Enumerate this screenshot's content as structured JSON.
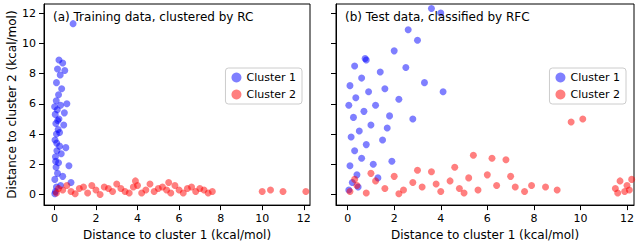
{
  "chart_data": [
    {
      "type": "scatter",
      "title": "(a) Training data, clustered by RC",
      "x_label": "Distance to cluster 1 (kcal/mol)",
      "y_label": "Distance to cluster 2 (kcal/mol)",
      "xlim": [
        -0.5,
        12.3
      ],
      "ylim": [
        -0.7,
        12.6
      ],
      "xticks": [
        0,
        2,
        4,
        6,
        8,
        10,
        12
      ],
      "yticks": [
        0,
        2,
        4,
        6,
        8,
        10,
        12
      ],
      "grid": false,
      "legend": "upper right",
      "series": [
        {
          "name": "Cluster 1",
          "color": "#0000ff",
          "marker": "circle",
          "values": [
            [
              0.05,
              0.2
            ],
            [
              0.1,
              0.5
            ],
            [
              0.02,
              1.0
            ],
            [
              0.15,
              1.4
            ],
            [
              0.08,
              1.8
            ],
            [
              0.2,
              2.1
            ],
            [
              0.05,
              2.5
            ],
            [
              0.12,
              2.9
            ],
            [
              0.25,
              3.2
            ],
            [
              0.03,
              3.6
            ],
            [
              0.1,
              4.0
            ],
            [
              0.18,
              4.3
            ],
            [
              0.07,
              4.7
            ],
            [
              0.22,
              5.0
            ],
            [
              0.04,
              5.3
            ],
            [
              0.14,
              5.6
            ],
            [
              0.3,
              5.9
            ],
            [
              0.09,
              6.2
            ],
            [
              0.2,
              6.6
            ],
            [
              0.35,
              7.0
            ],
            [
              0.1,
              7.4
            ],
            [
              0.28,
              7.9
            ],
            [
              0.15,
              8.3
            ],
            [
              0.4,
              8.7
            ],
            [
              0.22,
              8.9
            ],
            [
              0.5,
              8.2
            ],
            [
              0.6,
              6.0
            ],
            [
              0.45,
              4.6
            ],
            [
              0.55,
              3.1
            ],
            [
              0.7,
              1.9
            ],
            [
              0.4,
              1.2
            ],
            [
              0.3,
              0.6
            ],
            [
              0.8,
              0.8
            ],
            [
              0.02,
              0.05
            ],
            [
              0.06,
              2.2
            ],
            [
              0.11,
              3.4
            ],
            [
              0.16,
              4.9
            ],
            [
              0.01,
              5.8
            ],
            [
              0.25,
              4.1
            ],
            [
              0.9,
              11.3
            ],
            [
              0.33,
              2.7
            ],
            [
              0.48,
              5.4
            ]
          ]
        },
        {
          "name": "Cluster 2",
          "color": "#ff0000",
          "marker": "circle",
          "values": [
            [
              0.1,
              0.1
            ],
            [
              0.4,
              0.3
            ],
            [
              0.8,
              0.2
            ],
            [
              1.2,
              0.4
            ],
            [
              1.6,
              0.1
            ],
            [
              2.0,
              0.3
            ],
            [
              2.4,
              0.5
            ],
            [
              2.8,
              0.2
            ],
            [
              3.2,
              0.4
            ],
            [
              3.6,
              0.1
            ],
            [
              4.0,
              0.6
            ],
            [
              4.4,
              0.3
            ],
            [
              4.8,
              0.2
            ],
            [
              5.2,
              0.5
            ],
            [
              5.6,
              0.1
            ],
            [
              6.0,
              0.3
            ],
            [
              6.4,
              0.4
            ],
            [
              6.8,
              0.2
            ],
            [
              7.2,
              0.3
            ],
            [
              7.6,
              0.2
            ],
            [
              0.6,
              0.6
            ],
            [
              1.0,
              0.05
            ],
            [
              1.4,
              0.5
            ],
            [
              1.8,
              0.6
            ],
            [
              2.2,
              0.0
            ],
            [
              2.6,
              0.4
            ],
            [
              3.0,
              0.7
            ],
            [
              3.4,
              0.2
            ],
            [
              3.8,
              0.5
            ],
            [
              4.2,
              0.1
            ],
            [
              4.6,
              0.7
            ],
            [
              5.0,
              0.4
            ],
            [
              5.4,
              0.3
            ],
            [
              5.8,
              0.6
            ],
            [
              6.2,
              0.1
            ],
            [
              6.6,
              0.5
            ],
            [
              7.0,
              0.4
            ],
            [
              7.4,
              0.1
            ],
            [
              0.2,
              0.4
            ],
            [
              10.0,
              0.2
            ],
            [
              10.4,
              0.3
            ],
            [
              11.0,
              0.2
            ],
            [
              12.1,
              0.2
            ],
            [
              3.9,
              0.9
            ],
            [
              5.5,
              0.8
            ]
          ]
        }
      ]
    },
    {
      "type": "scatter",
      "title": "(b) Test data, classified by RFC",
      "x_label": "Distance to cluster 1 (kcal/mol)",
      "xlim": [
        -0.5,
        12.3
      ],
      "ylim": [
        -0.7,
        12.6
      ],
      "xticks": [
        0,
        2,
        4,
        6,
        8,
        10,
        12
      ],
      "yticks": [
        0,
        2,
        4,
        6,
        8,
        10,
        12
      ],
      "grid": false,
      "legend": "upper right",
      "tick_labels": "x",
      "series": [
        {
          "name": "Cluster 1",
          "color": "#0000ff",
          "marker": "circle",
          "values": [
            [
              0.05,
              0.3
            ],
            [
              0.2,
              0.8
            ],
            [
              0.4,
              1.3
            ],
            [
              0.1,
              1.9
            ],
            [
              0.6,
              2.4
            ],
            [
              0.3,
              2.9
            ],
            [
              0.8,
              3.3
            ],
            [
              0.15,
              3.8
            ],
            [
              0.5,
              4.2
            ],
            [
              1.0,
              4.6
            ],
            [
              0.25,
              5.1
            ],
            [
              0.7,
              5.5
            ],
            [
              1.2,
              5.9
            ],
            [
              0.35,
              6.4
            ],
            [
              0.9,
              6.8
            ],
            [
              0.1,
              7.2
            ],
            [
              0.6,
              7.7
            ],
            [
              1.4,
              8.1
            ],
            [
              0.3,
              8.5
            ],
            [
              0.8,
              8.9
            ],
            [
              1.6,
              7.0
            ],
            [
              1.8,
              5.2
            ],
            [
              1.5,
              3.6
            ],
            [
              1.9,
              2.2
            ],
            [
              1.3,
              1.1
            ],
            [
              2.2,
              6.3
            ],
            [
              2.5,
              8.4
            ],
            [
              2.0,
              9.5
            ],
            [
              2.6,
              10.9
            ],
            [
              3.6,
              12.3
            ],
            [
              4.0,
              12.0
            ],
            [
              3.0,
              10.2
            ],
            [
              3.3,
              7.4
            ],
            [
              2.8,
              5.0
            ],
            [
              4.1,
              6.8
            ],
            [
              0.05,
              5.9
            ],
            [
              0.45,
              0.5
            ],
            [
              1.1,
              2.0
            ],
            [
              0.75,
              9.0
            ],
            [
              1.7,
              4.4
            ]
          ]
        },
        {
          "name": "Cluster 2",
          "color": "#ff0000",
          "marker": "circle",
          "values": [
            [
              0.1,
              0.2
            ],
            [
              0.4,
              0.6
            ],
            [
              0.8,
              0.1
            ],
            [
              1.2,
              0.9
            ],
            [
              1.6,
              0.4
            ],
            [
              2.0,
              1.2
            ],
            [
              2.4,
              0.3
            ],
            [
              2.8,
              0.8
            ],
            [
              3.2,
              0.5
            ],
            [
              3.6,
              1.5
            ],
            [
              4.0,
              0.2
            ],
            [
              4.4,
              0.9
            ],
            [
              4.8,
              0.4
            ],
            [
              5.2,
              1.1
            ],
            [
              5.6,
              0.3
            ],
            [
              6.0,
              1.3
            ],
            [
              6.4,
              0.6
            ],
            [
              6.8,
              2.3
            ],
            [
              7.2,
              0.5
            ],
            [
              7.6,
              0.2
            ],
            [
              5.4,
              2.6
            ],
            [
              6.2,
              2.4
            ],
            [
              4.6,
              1.8
            ],
            [
              3.0,
              1.6
            ],
            [
              1.0,
              1.4
            ],
            [
              0.3,
              1.0
            ],
            [
              2.2,
              0.05
            ],
            [
              3.8,
              0.7
            ],
            [
              5.0,
              0.1
            ],
            [
              7.0,
              1.2
            ],
            [
              9.6,
              4.8
            ],
            [
              10.1,
              5.0
            ],
            [
              11.5,
              0.4
            ],
            [
              11.7,
              0.9
            ],
            [
              11.9,
              0.2
            ],
            [
              12.0,
              0.6
            ],
            [
              12.2,
              1.0
            ],
            [
              11.6,
              0.1
            ],
            [
              12.1,
              0.3
            ],
            [
              9.0,
              0.3
            ],
            [
              8.5,
              0.5
            ],
            [
              7.9,
              0.6
            ]
          ]
        }
      ]
    }
  ]
}
